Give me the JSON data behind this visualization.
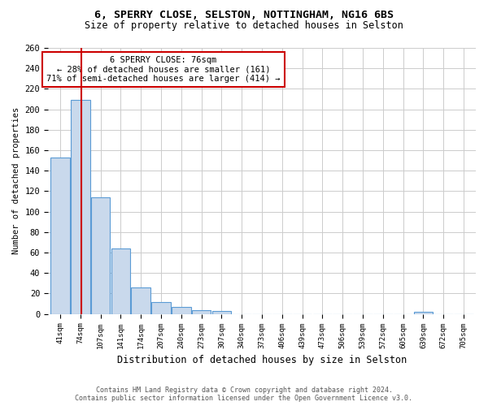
{
  "title_line1": "6, SPERRY CLOSE, SELSTON, NOTTINGHAM, NG16 6BS",
  "title_line2": "Size of property relative to detached houses in Selston",
  "xlabel": "Distribution of detached houses by size in Selston",
  "ylabel": "Number of detached properties",
  "bin_labels": [
    "41sqm",
    "74sqm",
    "107sqm",
    "141sqm",
    "174sqm",
    "207sqm",
    "240sqm",
    "273sqm",
    "307sqm",
    "340sqm",
    "373sqm",
    "406sqm",
    "439sqm",
    "473sqm",
    "506sqm",
    "539sqm",
    "572sqm",
    "605sqm",
    "639sqm",
    "672sqm",
    "705sqm"
  ],
  "bar_heights": [
    153,
    209,
    114,
    64,
    26,
    12,
    7,
    4,
    3,
    0,
    0,
    0,
    0,
    0,
    0,
    0,
    0,
    0,
    2,
    0,
    0
  ],
  "bar_color": "#c9d9ec",
  "bar_edge_color": "#5b9bd5",
  "property_line_color": "#cc0000",
  "annotation_text": "6 SPERRY CLOSE: 76sqm\n← 28% of detached houses are smaller (161)\n71% of semi-detached houses are larger (414) →",
  "annotation_box_color": "#ffffff",
  "annotation_box_edge_color": "#cc0000",
  "ylim": [
    0,
    260
  ],
  "yticks": [
    0,
    20,
    40,
    60,
    80,
    100,
    120,
    140,
    160,
    180,
    200,
    220,
    240,
    260
  ],
  "grid_color": "#cccccc",
  "background_color": "#ffffff",
  "footer_line1": "Contains HM Land Registry data © Crown copyright and database right 2024.",
  "footer_line2": "Contains public sector information licensed under the Open Government Licence v3.0."
}
